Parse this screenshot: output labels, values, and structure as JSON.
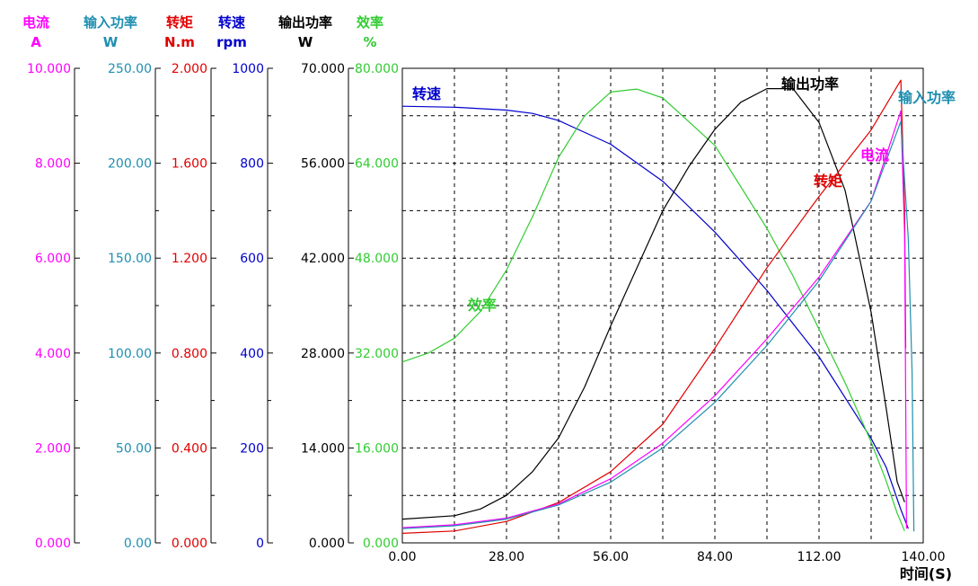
{
  "colors": {
    "current": "#ff00ff",
    "input_power": "#1f8fb0",
    "torque": "#e00000",
    "speed": "#0000cc",
    "output_power": "#000000",
    "efficiency": "#33cc33",
    "grid": "#000000"
  },
  "chart_data": {
    "type": "line",
    "grid": true,
    "xlabel": "时间(S)",
    "xlim": [
      0,
      140
    ],
    "x_ticks": [
      "0.00",
      "28.00",
      "56.00",
      "84.00",
      "112.00",
      "140.00"
    ],
    "axes": [
      {
        "key": "current",
        "name": "电流",
        "unit": "A",
        "ylim": [
          0,
          10
        ],
        "ticks": [
          "0.000",
          "2.000",
          "4.000",
          "6.000",
          "8.000",
          "10.000"
        ]
      },
      {
        "key": "input_power",
        "name": "输入功率",
        "unit": "W",
        "ylim": [
          0,
          250
        ],
        "ticks": [
          "0.00",
          "50.00",
          "100.00",
          "150.00",
          "200.00",
          "250.00"
        ]
      },
      {
        "key": "torque",
        "name": "转矩",
        "unit": "N.m",
        "ylim": [
          0,
          2
        ],
        "ticks": [
          "0.000",
          "0.400",
          "0.800",
          "1.200",
          "1.600",
          "2.000"
        ]
      },
      {
        "key": "speed",
        "name": "转速",
        "unit": "rpm",
        "ylim": [
          0,
          1000
        ],
        "ticks": [
          "0",
          "200",
          "400",
          "600",
          "800",
          "1000"
        ]
      },
      {
        "key": "output_power",
        "name": "输出功率",
        "unit": "W",
        "ylim": [
          0,
          70
        ],
        "ticks": [
          "0.000",
          "14.000",
          "28.000",
          "42.000",
          "56.000",
          "70.000"
        ]
      },
      {
        "key": "efficiency",
        "name": "效率",
        "unit": "%",
        "ylim": [
          0,
          80
        ],
        "ticks": [
          "0.000",
          "16.000",
          "32.000",
          "48.000",
          "64.000",
          "80.000"
        ]
      }
    ],
    "series": [
      {
        "key": "speed",
        "name": "转速",
        "points": [
          [
            0,
            920
          ],
          [
            14,
            918
          ],
          [
            28,
            912
          ],
          [
            35,
            905
          ],
          [
            42,
            890
          ],
          [
            56,
            840
          ],
          [
            70,
            762
          ],
          [
            84,
            655
          ],
          [
            98,
            532
          ],
          [
            112,
            392
          ],
          [
            126,
            220
          ],
          [
            130,
            160
          ],
          [
            134,
            70
          ],
          [
            136,
            30
          ]
        ]
      },
      {
        "key": "efficiency",
        "name": "效率",
        "points": [
          [
            0,
            30.5
          ],
          [
            7,
            32
          ],
          [
            14,
            34.5
          ],
          [
            21,
            39
          ],
          [
            28,
            46
          ],
          [
            35,
            55
          ],
          [
            42,
            65
          ],
          [
            49,
            72
          ],
          [
            56,
            76
          ],
          [
            63,
            76.5
          ],
          [
            70,
            75
          ],
          [
            84,
            67
          ],
          [
            91,
            60
          ],
          [
            98,
            53
          ],
          [
            105,
            45
          ],
          [
            112,
            36
          ],
          [
            119,
            27
          ],
          [
            126,
            17
          ],
          [
            130,
            10.5
          ],
          [
            133,
            5
          ],
          [
            135,
            2
          ]
        ]
      },
      {
        "key": "output_power",
        "name": "输出功率",
        "points": [
          [
            0,
            3.5
          ],
          [
            14,
            4
          ],
          [
            21,
            5
          ],
          [
            28,
            7
          ],
          [
            35,
            10.5
          ],
          [
            42,
            15.5
          ],
          [
            49,
            23
          ],
          [
            56,
            32
          ],
          [
            63,
            40.5
          ],
          [
            70,
            49
          ],
          [
            77,
            55.5
          ],
          [
            84,
            61
          ],
          [
            91,
            65
          ],
          [
            98,
            67
          ],
          [
            105,
            67
          ],
          [
            112,
            62
          ],
          [
            119,
            52
          ],
          [
            126,
            34
          ],
          [
            130,
            20
          ],
          [
            133,
            9
          ],
          [
            135,
            6
          ]
        ]
      },
      {
        "key": "torque",
        "name": "转矩",
        "points": [
          [
            0,
            0.04
          ],
          [
            14,
            0.05
          ],
          [
            28,
            0.09
          ],
          [
            42,
            0.17
          ],
          [
            56,
            0.3
          ],
          [
            70,
            0.5
          ],
          [
            84,
            0.82
          ],
          [
            98,
            1.16
          ],
          [
            112,
            1.46
          ],
          [
            126,
            1.74
          ],
          [
            134,
            1.95
          ],
          [
            135,
            1.4
          ],
          [
            135.3,
            0.82
          ]
        ]
      },
      {
        "key": "current",
        "name": "电流",
        "points": [
          [
            0,
            0.32
          ],
          [
            14,
            0.38
          ],
          [
            28,
            0.52
          ],
          [
            42,
            0.82
          ],
          [
            56,
            1.35
          ],
          [
            70,
            2.1
          ],
          [
            84,
            3.1
          ],
          [
            98,
            4.3
          ],
          [
            112,
            5.6
          ],
          [
            126,
            7.2
          ],
          [
            134,
            9.1
          ],
          [
            135,
            6.5
          ],
          [
            135.5,
            0.3
          ]
        ]
      },
      {
        "key": "input_power",
        "name": "输入功率",
        "points": [
          [
            0,
            7.5
          ],
          [
            14,
            9
          ],
          [
            28,
            12.5
          ],
          [
            42,
            20
          ],
          [
            56,
            32
          ],
          [
            70,
            50
          ],
          [
            84,
            74
          ],
          [
            98,
            104
          ],
          [
            112,
            138
          ],
          [
            126,
            180
          ],
          [
            134,
            222
          ],
          [
            136,
            160
          ],
          [
            137,
            90
          ],
          [
            137.5,
            6
          ]
        ]
      }
    ],
    "curve_labels": [
      {
        "key": "speed",
        "text": "转速"
      },
      {
        "key": "efficiency",
        "text": "效率"
      },
      {
        "key": "output_power",
        "text": "输出功率"
      },
      {
        "key": "torque",
        "text": "转矩"
      },
      {
        "key": "current",
        "text": "电流"
      },
      {
        "key": "input_power",
        "text": "输入功率"
      }
    ]
  }
}
